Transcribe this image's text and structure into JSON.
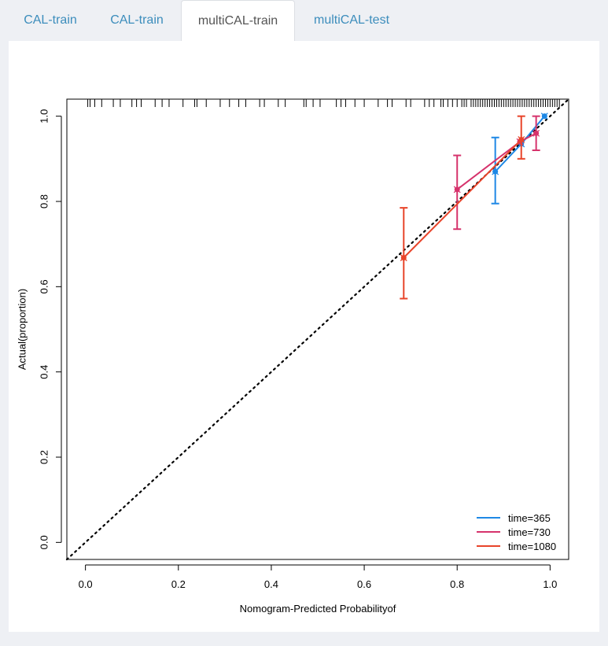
{
  "tabs": [
    {
      "label": "CAL-train",
      "active": false
    },
    {
      "label": "CAL-train",
      "active": false
    },
    {
      "label": "multiCAL-train",
      "active": true
    },
    {
      "label": "multiCAL-test",
      "active": false
    }
  ],
  "colors": {
    "accent": "#3c8dbc",
    "time365": "#1e88e5",
    "time730": "#d6336c",
    "time1080": "#e8442a"
  },
  "chart_data": {
    "type": "line",
    "title": "",
    "xlabel": "Nomogram-Predicted Probabilityof",
    "ylabel": "Actual(proportion)",
    "xlim": [
      -0.04,
      1.04
    ],
    "ylim": [
      -0.04,
      1.04
    ],
    "xticks": [
      "0.0",
      "0.2",
      "0.4",
      "0.6",
      "0.8",
      "1.0"
    ],
    "yticks": [
      "0.0",
      "0.2",
      "0.4",
      "0.6",
      "0.8",
      "1.0"
    ],
    "reference_line": {
      "from": [
        0,
        0
      ],
      "to": [
        1,
        1
      ],
      "style": "dotted"
    },
    "legend_position": "bottom-right",
    "rug": [
      0.005,
      0.01,
      0.02,
      0.035,
      0.06,
      0.075,
      0.1,
      0.11,
      0.12,
      0.15,
      0.165,
      0.18,
      0.21,
      0.235,
      0.24,
      0.26,
      0.29,
      0.31,
      0.33,
      0.345,
      0.375,
      0.385,
      0.415,
      0.43,
      0.47,
      0.475,
      0.49,
      0.505,
      0.54,
      0.55,
      0.56,
      0.58,
      0.6,
      0.63,
      0.65,
      0.66,
      0.69,
      0.7,
      0.73,
      0.74,
      0.75,
      0.765,
      0.77,
      0.78,
      0.79,
      0.8,
      0.81,
      0.815,
      0.82,
      0.83,
      0.835,
      0.84,
      0.845,
      0.85,
      0.855,
      0.86,
      0.865,
      0.87,
      0.875,
      0.88,
      0.885,
      0.89,
      0.895,
      0.9,
      0.905,
      0.91,
      0.915,
      0.92,
      0.925,
      0.93,
      0.935,
      0.94,
      0.945,
      0.95,
      0.955,
      0.96,
      0.965,
      0.97,
      0.975,
      0.98,
      0.985,
      0.99,
      0.995,
      1.0,
      1.005,
      1.01,
      1.015,
      1.02
    ],
    "series": [
      {
        "name": "time=365",
        "color": "#1e88e5",
        "points": [
          {
            "x": 0.882,
            "y": 0.87,
            "lo": 0.795,
            "hi": 0.95
          },
          {
            "x": 0.938,
            "y": 0.935
          },
          {
            "x": 0.988,
            "y": 1.0
          }
        ],
        "lo_marker_only": [
          0.938,
          0.988
        ]
      },
      {
        "name": "time=730",
        "color": "#d6336c",
        "points": [
          {
            "x": 0.8,
            "y": 0.828,
            "lo": 0.735,
            "hi": 0.908
          },
          {
            "x": 0.935,
            "y": 0.94
          },
          {
            "x": 0.97,
            "y": 0.96,
            "lo": 0.92,
            "hi": 1.0
          }
        ]
      },
      {
        "name": "time=1080",
        "color": "#e8442a",
        "points": [
          {
            "x": 0.685,
            "y": 0.668,
            "lo": 0.572,
            "hi": 0.785
          },
          {
            "x": 0.938,
            "y": 0.945,
            "lo": 0.9,
            "hi": 1.0
          }
        ]
      }
    ]
  }
}
